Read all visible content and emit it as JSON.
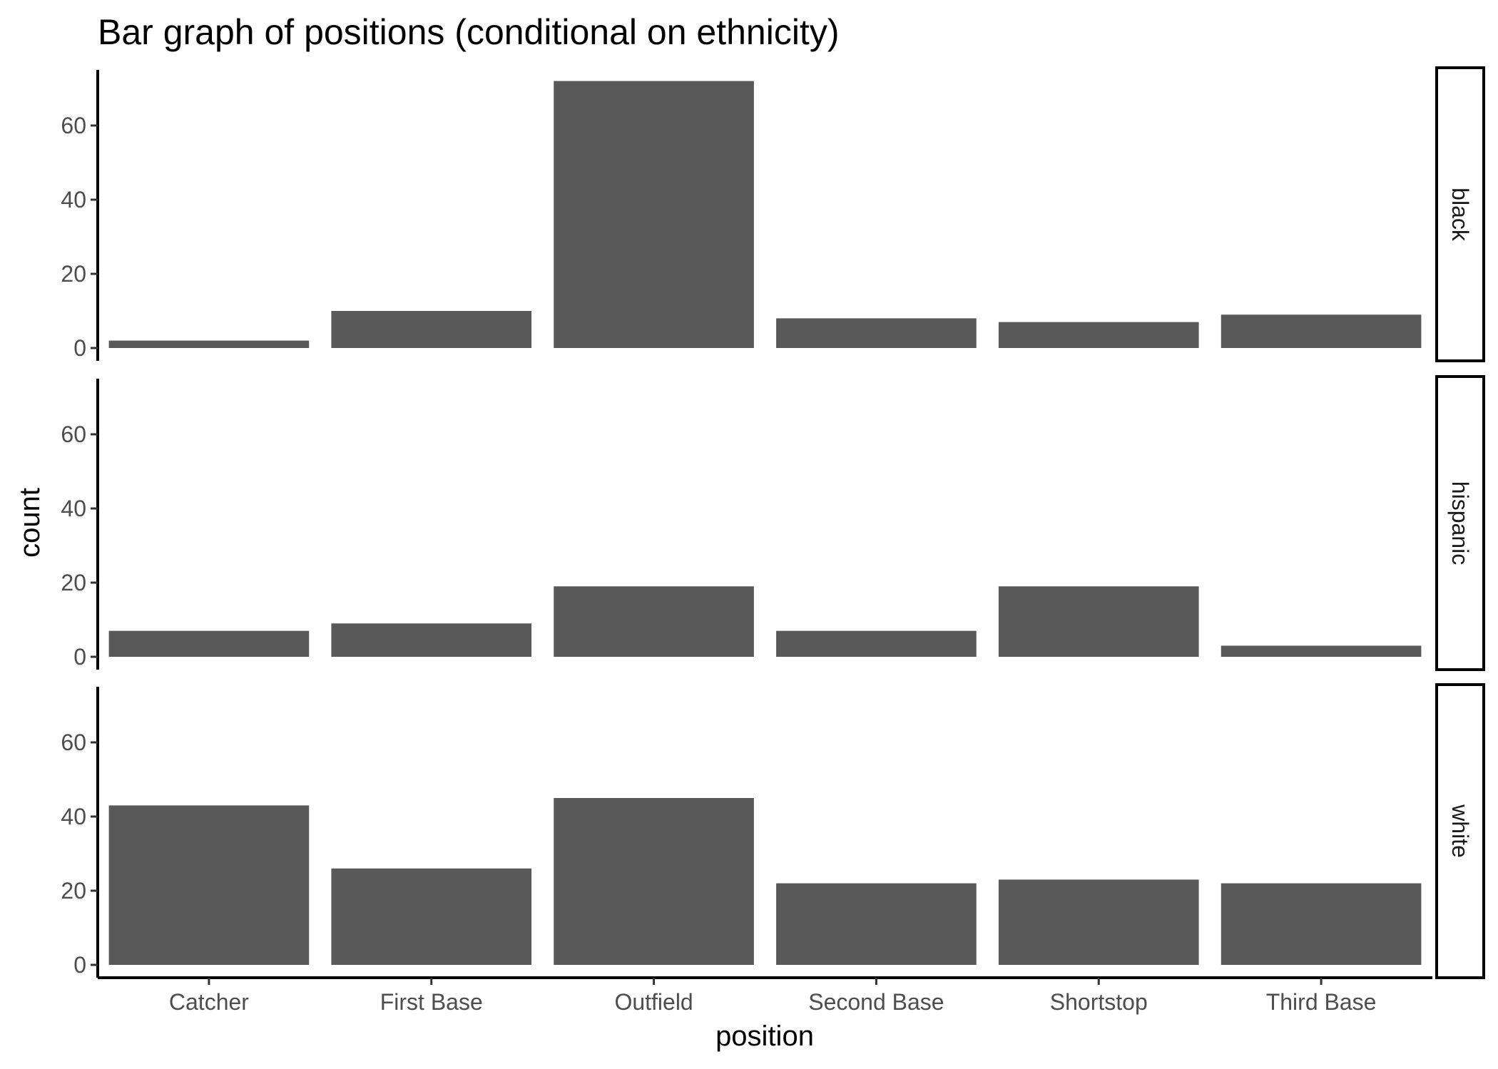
{
  "chart_data": {
    "type": "bar",
    "title": "Bar graph of positions (conditional on ethnicity)",
    "xlabel": "position",
    "ylabel": "count",
    "categories": [
      "Catcher",
      "First Base",
      "Outfield",
      "Second Base",
      "Shortstop",
      "Third Base"
    ],
    "ylim": [
      0,
      75
    ],
    "yticks": [
      0,
      20,
      40,
      60
    ],
    "grid": false,
    "facets": [
      {
        "label": "black",
        "values": [
          2,
          10,
          72,
          8,
          7,
          9
        ]
      },
      {
        "label": "hispanic",
        "values": [
          7,
          9,
          19,
          7,
          19,
          3
        ]
      },
      {
        "label": "white",
        "values": [
          43,
          26,
          45,
          22,
          23,
          22
        ]
      }
    ],
    "colors": {
      "bar": "#595959",
      "axis": "#000000",
      "tick_text": "#4d4d4d"
    }
  }
}
